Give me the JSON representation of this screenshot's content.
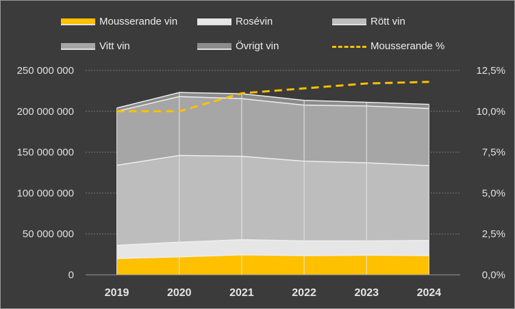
{
  "chart_data": {
    "type": "area",
    "categories": [
      "2019",
      "2020",
      "2021",
      "2022",
      "2023",
      "2024"
    ],
    "series": [
      {
        "name": "Mousserande vin",
        "color": "#ffc000",
        "values": [
          20000000,
          22000000,
          24500000,
          23500000,
          24000000,
          23500000
        ]
      },
      {
        "name": "Rosévin",
        "color": "#e6e6e6",
        "values": [
          16000000,
          18000000,
          18500000,
          18000000,
          17500000,
          18500000
        ]
      },
      {
        "name": "Rött vin",
        "color": "#bdbdbd",
        "values": [
          98000000,
          106000000,
          102000000,
          97500000,
          95500000,
          91500000
        ]
      },
      {
        "name": "Vitt vin",
        "color": "#a6a6a6",
        "values": [
          66000000,
          72000000,
          70500000,
          68500000,
          69500000,
          70000000
        ]
      },
      {
        "name": "Övrigt vin",
        "color": "#8c8c8c",
        "values": [
          4000000,
          5000000,
          6000000,
          6000000,
          4500000,
          5000000
        ]
      }
    ],
    "line_series": {
      "name": "Mousserande %",
      "color": "#ffc000",
      "axis": "right",
      "values": [
        10.0,
        10.0,
        11.1,
        11.4,
        11.7,
        11.8
      ]
    },
    "y_left": {
      "ticks": [
        "0",
        "50 000 000",
        "100 000 000",
        "150 000 000",
        "200 000 000",
        "250 000 000"
      ],
      "ylim": [
        0,
        250000000
      ]
    },
    "y_right": {
      "ticks": [
        "0,0%",
        "2,5%",
        "5,0%",
        "7,5%",
        "10,0%",
        "12,5%"
      ],
      "ylim": [
        0,
        12.5
      ]
    },
    "legend": [
      {
        "label": "Mousserande vin",
        "kind": "area",
        "color": "#ffc000"
      },
      {
        "label": "Rosévin",
        "kind": "area",
        "color": "#e6e6e6"
      },
      {
        "label": "Rött vin",
        "kind": "area",
        "color": "#bdbdbd"
      },
      {
        "label": "Vitt vin",
        "kind": "area",
        "color": "#a6a6a6"
      },
      {
        "label": "Övrigt vin",
        "kind": "area",
        "color": "#8c8c8c"
      },
      {
        "label": "Mousserande %",
        "kind": "dashed-line",
        "color": "#ffc000"
      }
    ],
    "grid": "horizontal dotted",
    "legend_position": "top",
    "background": "#3b3b3b"
  }
}
